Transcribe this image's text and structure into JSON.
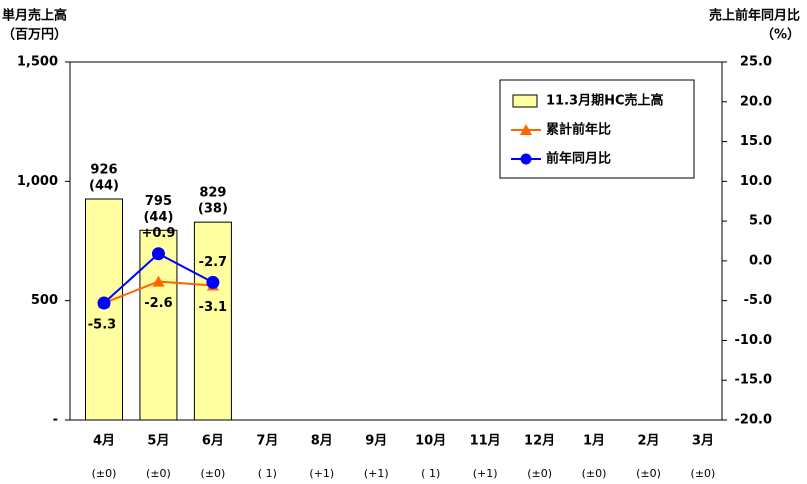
{
  "chart_data": {
    "type": "bar_line",
    "y_title": [
      "単月売上高",
      "（百万円）"
    ],
    "y2_title": [
      "売上前年同月比",
      "（%）"
    ],
    "categories": [
      "4月",
      "5月",
      "6月",
      "7月",
      "8月",
      "9月",
      "10月",
      "11月",
      "12月",
      "1月",
      "2月",
      "3月"
    ],
    "category_notes": [
      "(±0)",
      "(±0)",
      "(±0)",
      "( 1)",
      "(+1)",
      "(+1)",
      "( 1)",
      "(+1)",
      "(±0)",
      "(±0)",
      "(±0)",
      "(±0)"
    ],
    "ylim": [
      0,
      1500
    ],
    "yticks": [
      {
        "value": 0,
        "label": "-"
      },
      500,
      {
        "value": 1000,
        "label": "1,000"
      },
      {
        "value": 1500,
        "label": "1,500"
      }
    ],
    "y2lim": [
      -20,
      25
    ],
    "y2ticks": [
      {
        "value": -20,
        "label": "-20.0"
      },
      {
        "value": -15,
        "label": "-15.0"
      },
      {
        "value": -10,
        "label": "-10.0"
      },
      {
        "value": -5,
        "label": "-5.0"
      },
      {
        "value": 0,
        "label": "0.0"
      },
      {
        "value": 5,
        "label": "5.0"
      },
      {
        "value": 10,
        "label": "10.0"
      },
      {
        "value": 15,
        "label": "15.0"
      },
      {
        "value": 20,
        "label": "20.0"
      },
      {
        "value": 25,
        "label": "25.0"
      }
    ],
    "legend": "top-right",
    "series": [
      {
        "name": "11.3月期HC売上高",
        "kind": "bar",
        "color": "#ffffa0",
        "values": [
          926,
          795,
          829,
          null,
          null,
          null,
          null,
          null,
          null,
          null,
          null,
          null
        ],
        "sublabels": [
          "(44)",
          "(44)",
          "(38)",
          null,
          null,
          null,
          null,
          null,
          null,
          null,
          null,
          null
        ]
      },
      {
        "name": "累計前年比",
        "kind": "line",
        "marker": "triangle",
        "color": "#ff6600",
        "axis": "y2",
        "values": [
          -5.3,
          -2.6,
          -3.1,
          null,
          null,
          null,
          null,
          null,
          null,
          null,
          null,
          null
        ],
        "value_labels": [
          null,
          "-2.6",
          "-3.1",
          null,
          null,
          null,
          null,
          null,
          null,
          null,
          null,
          null
        ]
      },
      {
        "name": "前年同月比",
        "kind": "line",
        "marker": "circle",
        "color": "#0000ff",
        "axis": "y2",
        "values": [
          -5.3,
          0.9,
          -2.7,
          null,
          null,
          null,
          null,
          null,
          null,
          null,
          null,
          null
        ],
        "value_labels": [
          "-5.3",
          "+0.9",
          "-2.7",
          null,
          null,
          null,
          null,
          null,
          null,
          null,
          null,
          null
        ]
      }
    ]
  }
}
